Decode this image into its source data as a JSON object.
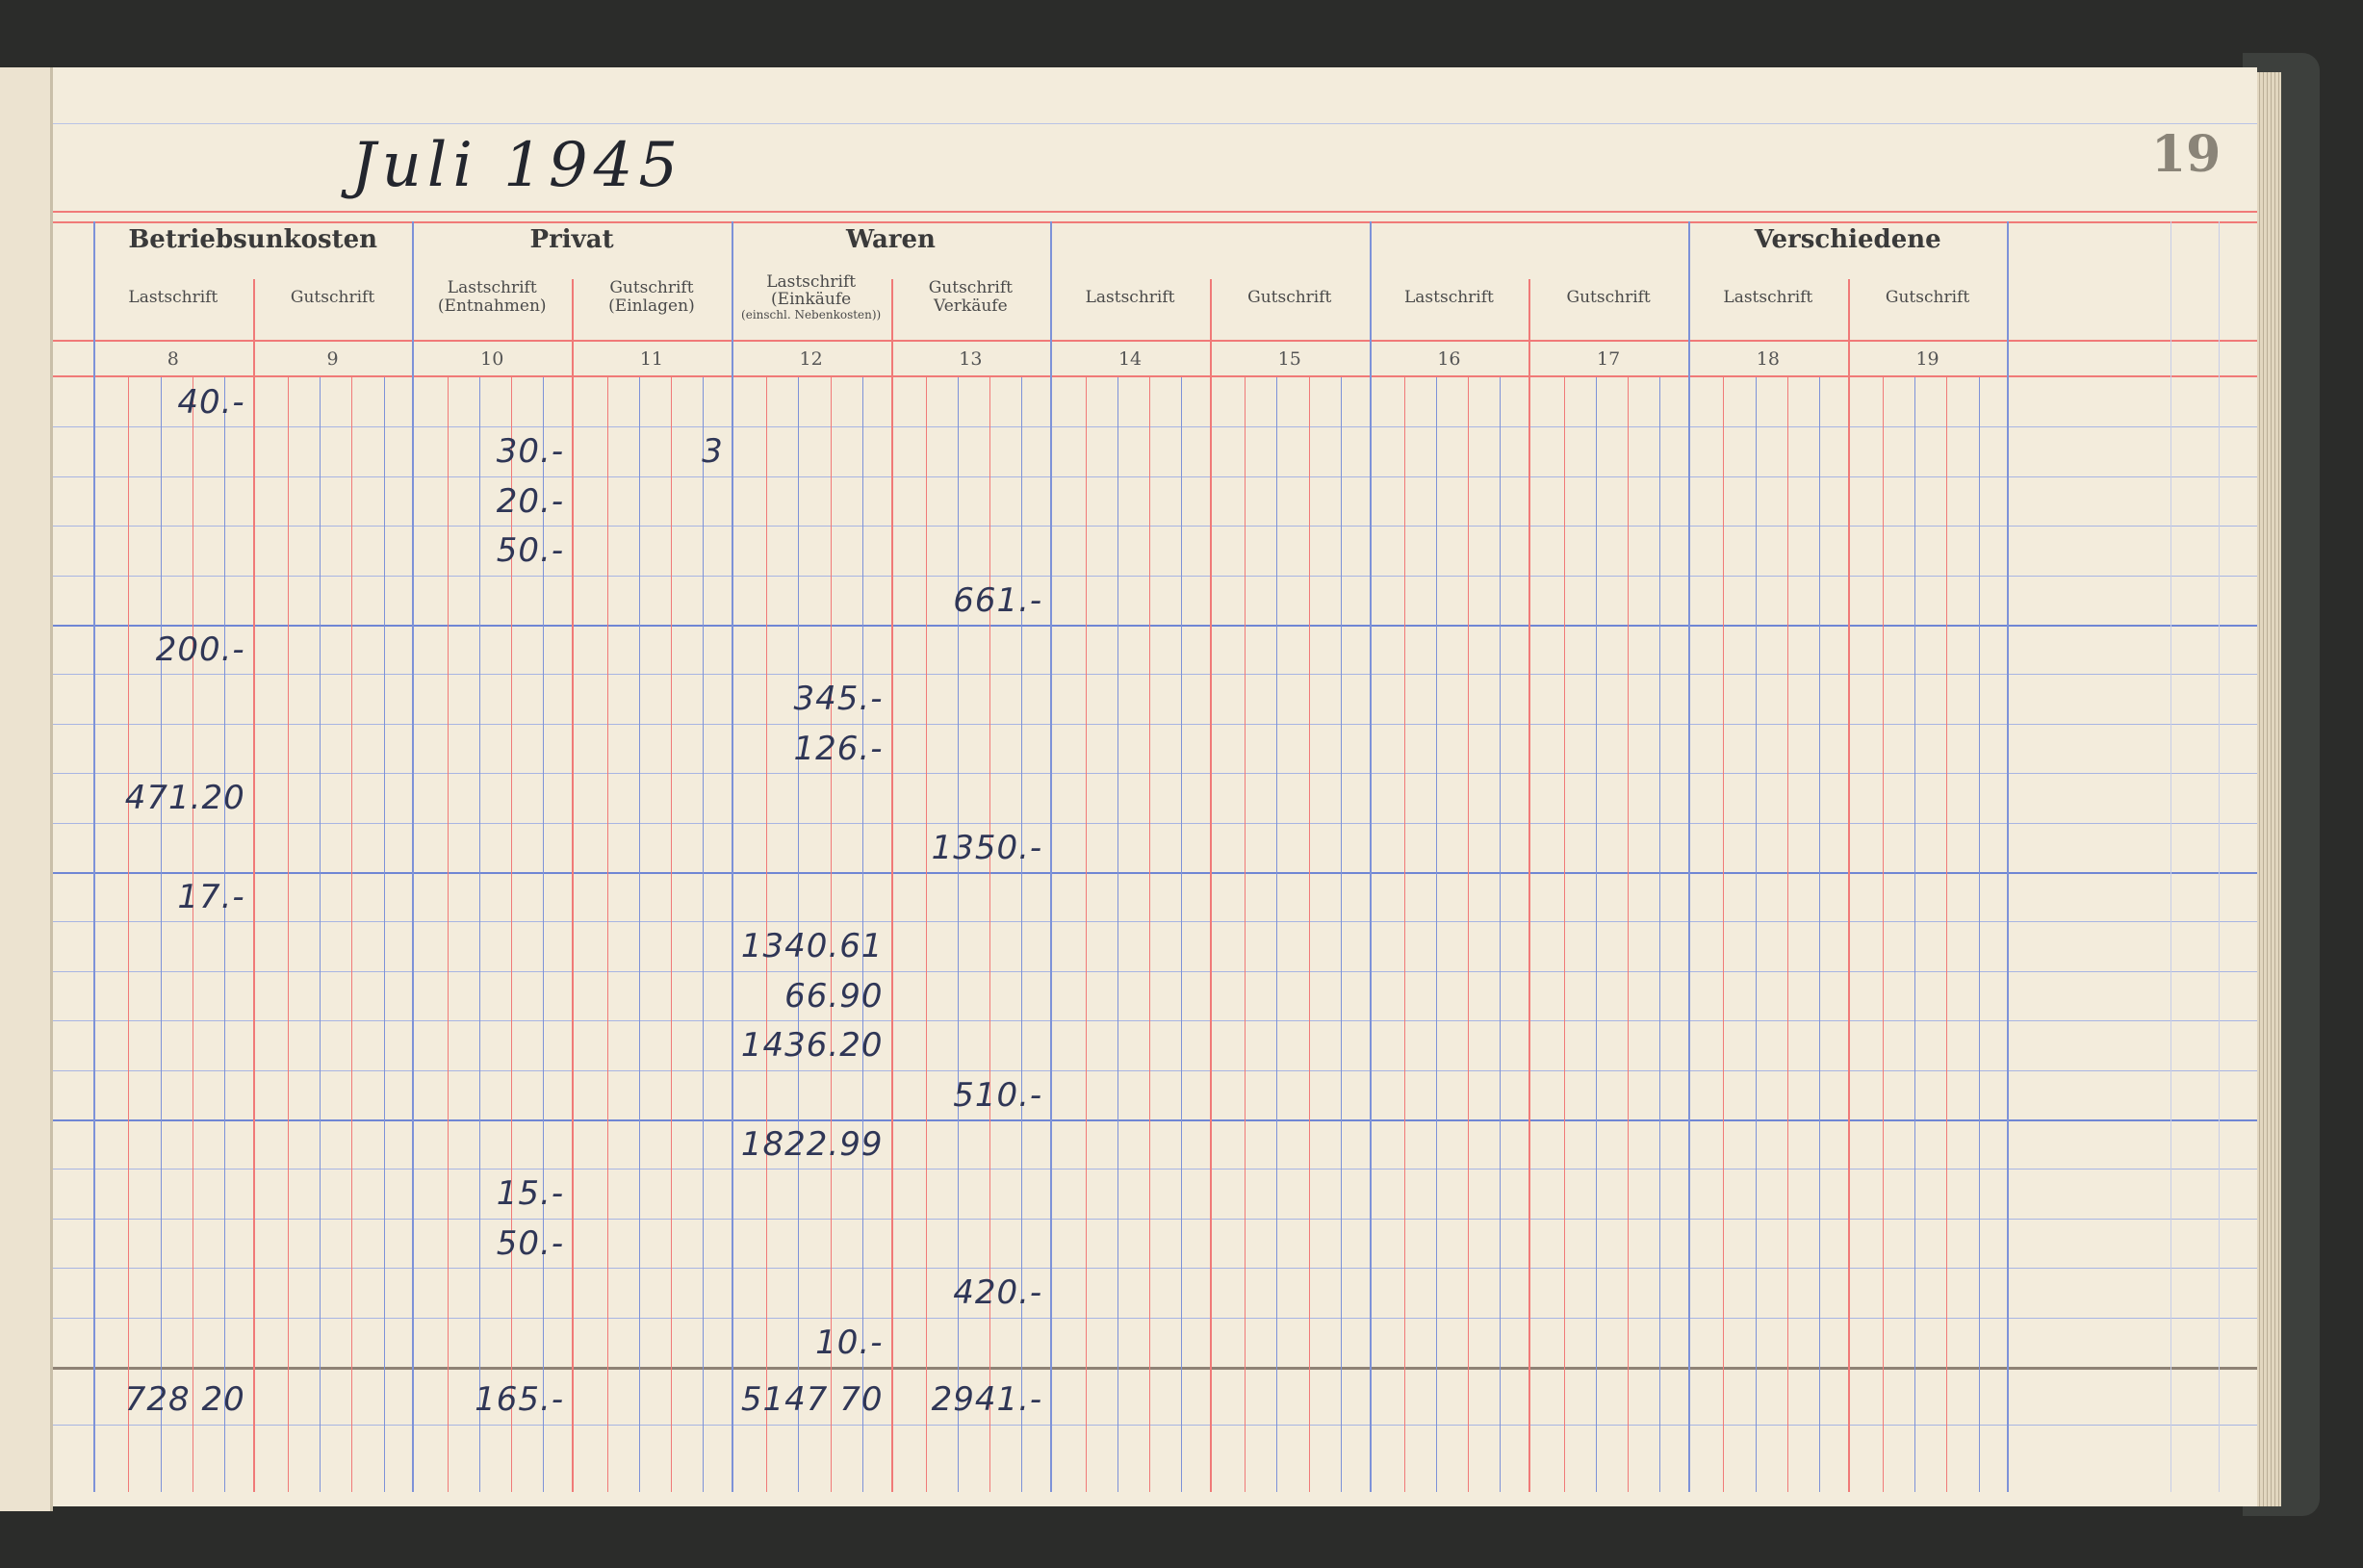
{
  "header": {
    "title": "Juli 1945",
    "page_number": "19"
  },
  "colors": {
    "paper": "#f3ecdc",
    "rule_red": "#f07a78",
    "rule_blue": "#7d92d8",
    "ink": "#2f3656"
  },
  "groups": [
    {
      "label": "Betriebsunkosten",
      "cols": [
        8,
        9
      ]
    },
    {
      "label": "Privat",
      "cols": [
        10,
        11
      ]
    },
    {
      "label": "Waren",
      "cols": [
        12,
        13
      ]
    },
    {
      "label": "",
      "cols": [
        14,
        15
      ]
    },
    {
      "label": "",
      "cols": [
        16,
        17
      ]
    },
    {
      "label": "Verschiedene",
      "cols": [
        18,
        19
      ]
    }
  ],
  "columns": [
    {
      "num": "8",
      "label": "Lastschrift",
      "note": ""
    },
    {
      "num": "9",
      "label": "Gutschrift",
      "note": ""
    },
    {
      "num": "10",
      "label": "Lastschrift",
      "note": "(Entnahmen)"
    },
    {
      "num": "11",
      "label": "Gutschrift",
      "note": "(Einlagen)"
    },
    {
      "num": "12",
      "label": "Lastschrift",
      "note": "(Einkäufe",
      "small": "(einschl. Nebenkosten))"
    },
    {
      "num": "13",
      "label": "Gutschrift",
      "note": "Verkäufe"
    },
    {
      "num": "14",
      "label": "Lastschrift",
      "note": ""
    },
    {
      "num": "15",
      "label": "Gutschrift",
      "note": ""
    },
    {
      "num": "16",
      "label": "Lastschrift",
      "note": ""
    },
    {
      "num": "17",
      "label": "Gutschrift",
      "note": ""
    },
    {
      "num": "18",
      "label": "Lastschrift",
      "note": ""
    },
    {
      "num": "19",
      "label": "Gutschrift",
      "note": ""
    }
  ],
  "entries": [
    {
      "row": 0,
      "col": 8,
      "value": "40.-"
    },
    {
      "row": 1,
      "col": 10,
      "value": "30.-"
    },
    {
      "row": 1,
      "col": 11,
      "value": "3"
    },
    {
      "row": 2,
      "col": 10,
      "value": "20.-"
    },
    {
      "row": 3,
      "col": 10,
      "value": "50.-"
    },
    {
      "row": 4,
      "col": 13,
      "value": "661.-"
    },
    {
      "row": 5,
      "col": 8,
      "value": "200.-"
    },
    {
      "row": 6,
      "col": 12,
      "value": "345.-"
    },
    {
      "row": 7,
      "col": 12,
      "value": "126.-"
    },
    {
      "row": 8,
      "col": 8,
      "value": "471.20"
    },
    {
      "row": 9,
      "col": 13,
      "value": "1350.-"
    },
    {
      "row": 10,
      "col": 8,
      "value": "17.-"
    },
    {
      "row": 11,
      "col": 12,
      "value": "1340.61"
    },
    {
      "row": 12,
      "col": 12,
      "value": "66.90"
    },
    {
      "row": 13,
      "col": 12,
      "value": "1436.20"
    },
    {
      "row": 14,
      "col": 13,
      "value": "510.-"
    },
    {
      "row": 15,
      "col": 12,
      "value": "1822.99"
    },
    {
      "row": 16,
      "col": 10,
      "value": "15.-"
    },
    {
      "row": 17,
      "col": 10,
      "value": "50.-"
    },
    {
      "row": 18,
      "col": 13,
      "value": "420.-"
    },
    {
      "row": 19,
      "col": 12,
      "value": "10.-"
    }
  ],
  "totals": [
    {
      "col": 8,
      "value": "728 20"
    },
    {
      "col": 10,
      "value": "165.-"
    },
    {
      "col": 12,
      "value": "5147 70"
    },
    {
      "col": 13,
      "value": "2941.-"
    }
  ]
}
